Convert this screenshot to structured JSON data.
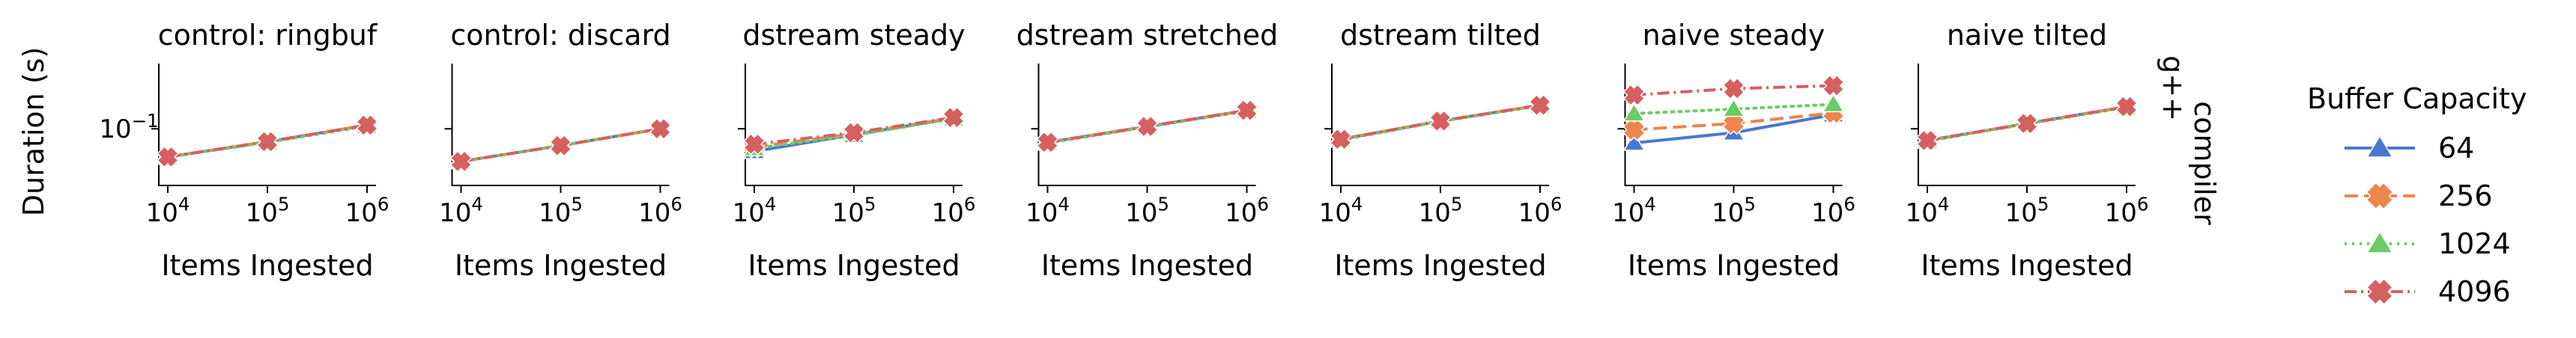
{
  "chart_data": {
    "type": "line",
    "ylabel": "Duration (s)",
    "xlabel": "Items Ingested",
    "xscale": "log",
    "yscale": "log",
    "x": [
      10000,
      100000,
      1000000
    ],
    "x_tick_labels": [
      "10^4",
      "10^5",
      "10^6"
    ],
    "y_tick_labels": [
      "10^-1"
    ],
    "ylim": [
      0.03,
      0.4
    ],
    "row_facet_label": "compiler",
    "row_facet_value": "g++",
    "legend": {
      "title": "Buffer Capacity",
      "placement": "right",
      "entries": [
        "64",
        "256",
        "1024",
        "4096"
      ]
    },
    "series_styles": [
      {
        "name": "64",
        "color": "#4878d0",
        "marker": "triangle",
        "dash": "solid"
      },
      {
        "name": "256",
        "color": "#ee854a",
        "marker": "plus",
        "dash": "dashed"
      },
      {
        "name": "1024",
        "color": "#6acc64",
        "marker": "triangle",
        "dash": "dotted"
      },
      {
        "name": "4096",
        "color": "#d65f5f",
        "marker": "x",
        "dash": "dashdot"
      }
    ],
    "panels": [
      {
        "title": "control: ringbuf",
        "series": [
          {
            "name": "64",
            "values": [
              0.055,
              0.076,
              0.108
            ]
          },
          {
            "name": "256",
            "values": [
              0.055,
              0.076,
              0.108
            ]
          },
          {
            "name": "1024",
            "values": [
              0.055,
              0.075,
              0.106
            ]
          },
          {
            "name": "4096",
            "values": [
              0.055,
              0.076,
              0.108
            ]
          }
        ]
      },
      {
        "title": "control: discard",
        "series": [
          {
            "name": "64",
            "values": [
              0.05,
              0.07,
              0.1
            ]
          },
          {
            "name": "256",
            "values": [
              0.05,
              0.07,
              0.1
            ]
          },
          {
            "name": "1024",
            "values": [
              0.05,
              0.07,
              0.1
            ]
          },
          {
            "name": "4096",
            "values": [
              0.05,
              0.07,
              0.1
            ]
          }
        ]
      },
      {
        "title": "dstream steady",
        "series": [
          {
            "name": "64",
            "values": [
              0.062,
              0.088,
              0.125
            ]
          },
          {
            "name": "256",
            "values": [
              0.068,
              0.09,
              0.126
            ]
          },
          {
            "name": "1024",
            "values": [
              0.066,
              0.087,
              0.124
            ]
          },
          {
            "name": "4096",
            "values": [
              0.072,
              0.092,
              0.127
            ]
          }
        ]
      },
      {
        "title": "dstream stretched",
        "series": [
          {
            "name": "64",
            "values": [
              0.075,
              0.105,
              0.148
            ]
          },
          {
            "name": "256",
            "values": [
              0.075,
              0.105,
              0.148
            ]
          },
          {
            "name": "1024",
            "values": [
              0.074,
              0.104,
              0.146
            ]
          },
          {
            "name": "4096",
            "values": [
              0.075,
              0.105,
              0.148
            ]
          }
        ]
      },
      {
        "title": "dstream tilted",
        "series": [
          {
            "name": "64",
            "values": [
              0.08,
              0.118,
              0.165
            ]
          },
          {
            "name": "256",
            "values": [
              0.08,
              0.118,
              0.165
            ]
          },
          {
            "name": "1024",
            "values": [
              0.079,
              0.117,
              0.163
            ]
          },
          {
            "name": "4096",
            "values": [
              0.08,
              0.118,
              0.165
            ]
          }
        ]
      },
      {
        "title": "naive steady",
        "series": [
          {
            "name": "64",
            "values": [
              0.074,
              0.092,
              0.135
            ]
          },
          {
            "name": "256",
            "values": [
              0.098,
              0.112,
              0.14
            ]
          },
          {
            "name": "1024",
            "values": [
              0.138,
              0.152,
              0.168
            ]
          },
          {
            "name": "4096",
            "values": [
              0.205,
              0.235,
              0.25
            ]
          }
        ]
      },
      {
        "title": "naive tilted",
        "series": [
          {
            "name": "64",
            "values": [
              0.078,
              0.112,
              0.16
            ]
          },
          {
            "name": "256",
            "values": [
              0.078,
              0.112,
              0.16
            ]
          },
          {
            "name": "1024",
            "values": [
              0.077,
              0.111,
              0.158
            ]
          },
          {
            "name": "4096",
            "values": [
              0.078,
              0.112,
              0.16
            ]
          }
        ]
      }
    ]
  }
}
